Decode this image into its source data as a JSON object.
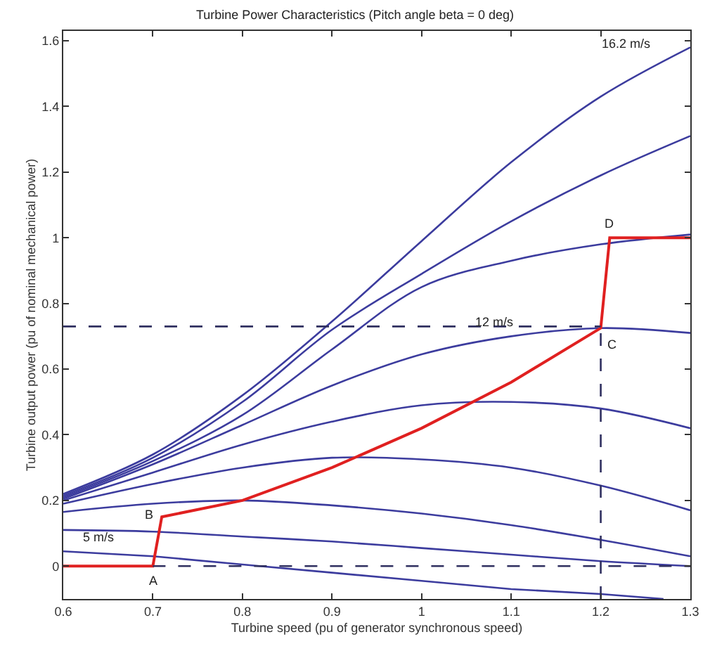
{
  "chart_data": {
    "type": "line",
    "title": "Turbine Power Characteristics (Pitch angle beta = 0 deg)",
    "xlabel": "Turbine speed (pu of generator synchronous speed)",
    "ylabel": "Turbine output power (pu of nominal mechanical power)",
    "x": [
      0.6,
      0.7,
      0.8,
      0.9,
      1.0,
      1.1,
      1.2,
      1.3
    ],
    "series": [
      {
        "color": "#3c3c9e",
        "x": [
          0.6,
          0.7,
          0.8,
          0.9,
          1.0,
          1.1,
          1.2,
          1.27
        ],
        "values": [
          0.045,
          0.03,
          0.005,
          -0.02,
          -0.045,
          -0.07,
          -0.085,
          -0.1
        ]
      },
      {
        "color": "#3c3c9e",
        "values": [
          0.11,
          0.105,
          0.09,
          0.075,
          0.055,
          0.035,
          0.015,
          0.0
        ]
      },
      {
        "color": "#3c3c9e",
        "values": [
          0.165,
          0.19,
          0.2,
          0.185,
          0.16,
          0.125,
          0.08,
          0.03
        ]
      },
      {
        "color": "#3c3c9e",
        "values": [
          0.19,
          0.25,
          0.3,
          0.33,
          0.325,
          0.3,
          0.245,
          0.17
        ]
      },
      {
        "color": "#3c3c9e",
        "values": [
          0.2,
          0.285,
          0.37,
          0.44,
          0.49,
          0.5,
          0.48,
          0.42
        ]
      },
      {
        "color": "#3c3c9e",
        "values": [
          0.205,
          0.31,
          0.43,
          0.55,
          0.645,
          0.7,
          0.725,
          0.71
        ]
      },
      {
        "color": "#3c3c9e",
        "values": [
          0.21,
          0.32,
          0.46,
          0.66,
          0.85,
          0.93,
          0.98,
          1.01
        ]
      },
      {
        "color": "#3c3c9e",
        "values": [
          0.215,
          0.33,
          0.5,
          0.72,
          0.89,
          1.05,
          1.19,
          1.31
        ]
      },
      {
        "color": "#3c3c9e",
        "values": [
          0.22,
          0.34,
          0.52,
          0.745,
          0.99,
          1.23,
          1.43,
          1.58
        ]
      },
      {
        "color": "#e02020",
        "x": [
          0.6,
          0.7,
          0.71,
          0.8,
          0.9,
          1.0,
          1.1,
          1.2,
          1.21,
          1.3
        ],
        "values": [
          0,
          0,
          0.15,
          0.2,
          0.3,
          0.42,
          0.56,
          0.725,
          1.0,
          1.0
        ]
      },
      {
        "color": "#303060",
        "line_style": "dashed",
        "x": [
          0.6,
          1.2
        ],
        "values": [
          0.73,
          0.73
        ]
      },
      {
        "color": "#303060",
        "line_style": "dashed",
        "x": [
          0.7,
          1.3
        ],
        "values": [
          0,
          0
        ]
      },
      {
        "color": "#303060",
        "line_style": "dashed",
        "x": [
          1.2,
          1.2
        ],
        "values": [
          -0.1,
          0.73
        ]
      }
    ],
    "annotations": [
      "16.2 m/s",
      {
        "text": "12 m/s",
        "x": 1.1,
        "y": 0.7
      },
      {
        "text": "5 m/s",
        "x": 0.6,
        "y": 0.045
      },
      {
        "text": "A",
        "x": 0.7,
        "y": 0
      },
      {
        "text": "B",
        "x": 0.71,
        "y": 0.15
      },
      {
        "text": "C",
        "x": 1.2,
        "y": 0.725
      },
      {
        "text": "D",
        "x": 1.21,
        "y": 1.0
      }
    ],
    "xlim": [
      0.6,
      1.3
    ],
    "ylim": [
      -0.1,
      1.63
    ],
    "xticks": [
      0.6,
      0.7,
      0.8,
      0.9,
      1,
      1.1,
      1.2,
      1.3
    ],
    "yticks": [
      0,
      0.2,
      0.4,
      0.6,
      0.8,
      1,
      1.2,
      1.4,
      1.6
    ],
    "marker": "none",
    "line_style": "solid"
  }
}
